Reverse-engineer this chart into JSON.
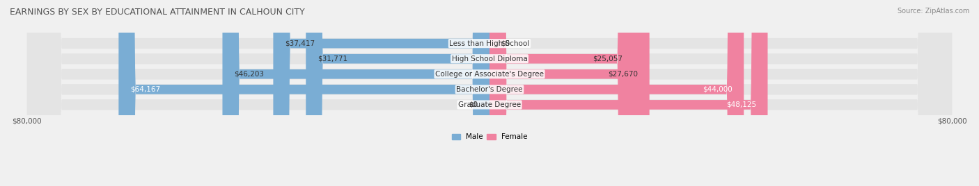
{
  "title": "EARNINGS BY SEX BY EDUCATIONAL ATTAINMENT IN CALHOUN CITY",
  "source": "Source: ZipAtlas.com",
  "categories": [
    "Less than High School",
    "High School Diploma",
    "College or Associate's Degree",
    "Bachelor's Degree",
    "Graduate Degree"
  ],
  "male_values": [
    37417,
    31771,
    46203,
    64167,
    0
  ],
  "female_values": [
    0,
    25057,
    27670,
    44000,
    48125
  ],
  "male_color": "#7aadd4",
  "female_color": "#f082a0",
  "male_label_color": "#555555",
  "female_label_color": "#555555",
  "axis_max": 80000,
  "bg_color": "#f0f0f0",
  "bar_bg_color": "#e8e8e8",
  "title_color": "#555555",
  "source_color": "#888888",
  "label_fontsize": 7.5,
  "title_fontsize": 9,
  "source_fontsize": 7,
  "category_fontsize": 7.5,
  "bar_height": 0.62,
  "legend_male_color": "#7aadd4",
  "legend_female_color": "#f082a0"
}
